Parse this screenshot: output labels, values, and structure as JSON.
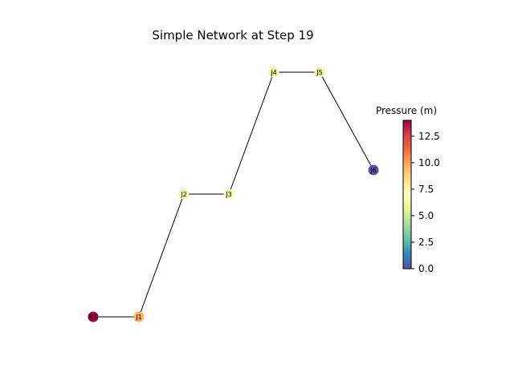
{
  "title": "Simple Network at Step 19",
  "colorbar": {
    "label": "Pressure (m)",
    "min": 0.0,
    "max": 14.0,
    "ticks": [
      "0.0",
      "2.5",
      "5.0",
      "7.5",
      "10.0",
      "12.5"
    ],
    "colormap": "Spectral_r"
  },
  "nodes": [
    {
      "id": "R1",
      "label": "R1",
      "pressure": 14.0,
      "color": "#9e0142"
    },
    {
      "id": "J1",
      "label": "J1",
      "pressure": 9.8,
      "color": "#fdae61"
    },
    {
      "id": "J2",
      "label": "J2",
      "pressure": 6.2,
      "color": "#f3fab0"
    },
    {
      "id": "J3",
      "label": "J3",
      "pressure": 6.2,
      "color": "#f3fab0"
    },
    {
      "id": "J4",
      "label": "J4",
      "pressure": 6.0,
      "color": "#eef8a6"
    },
    {
      "id": "J5",
      "label": "J5",
      "pressure": 6.0,
      "color": "#eef8a6"
    },
    {
      "id": "J6",
      "label": "J6",
      "pressure": 0.0,
      "color": "#5e4fa2"
    }
  ],
  "links": [
    [
      "R1",
      "J1"
    ],
    [
      "J1",
      "J2"
    ],
    [
      "J2",
      "J3"
    ],
    [
      "J3",
      "J4"
    ],
    [
      "J4",
      "J5"
    ],
    [
      "J5",
      "J6"
    ]
  ]
}
